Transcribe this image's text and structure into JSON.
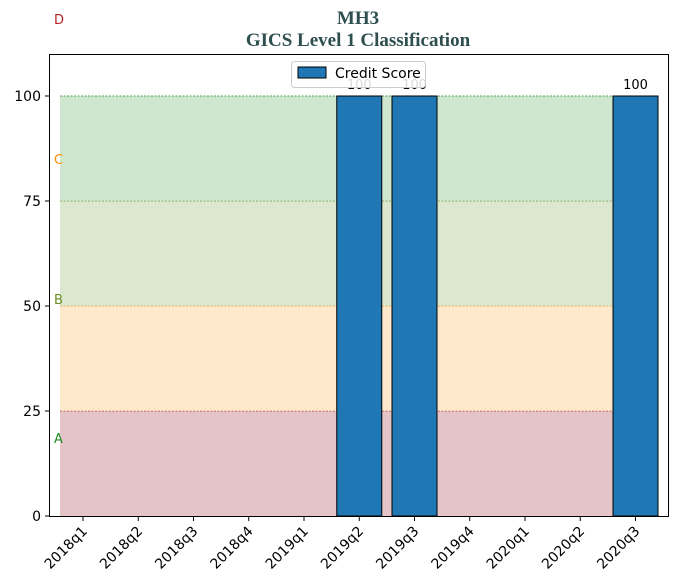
{
  "chart_data": {
    "type": "bar",
    "title": "MH3",
    "subtitle": "GICS Level 1 Classification",
    "xlabel": "",
    "ylabel": "",
    "categories": [
      "2018q1",
      "2018q2",
      "2018q3",
      "2018q4",
      "2019q1",
      "2019q2",
      "2019q3",
      "2019q4",
      "2020q1",
      "2020q2",
      "2020q3"
    ],
    "series": [
      {
        "name": "Credit Score",
        "values": [
          null,
          null,
          null,
          null,
          null,
          100,
          100,
          null,
          null,
          null,
          100
        ],
        "color": "#1f77b4"
      }
    ],
    "data_labels": [
      "",
      "",
      "",
      "",
      "",
      "100",
      "100",
      "",
      "",
      "",
      "100"
    ],
    "ylim": [
      0,
      110
    ],
    "yticks": [
      0,
      25,
      50,
      75,
      100
    ],
    "grid": false,
    "legend": "top-center",
    "bands": [
      {
        "letter": "A",
        "from": 0,
        "to": 25,
        "fill": "#c9898f",
        "line": "#b22222",
        "letter_color": "#228b22"
      },
      {
        "letter": "B",
        "from": 25,
        "to": 50,
        "fill": "#ffd39b",
        "line": "#ff8c00",
        "letter_color": "#6b8e23"
      },
      {
        "letter": "C",
        "from": 50,
        "to": 75,
        "fill": "#b8cfa0",
        "line": "#6b8e23",
        "letter_color": "#ff8c00"
      },
      {
        "letter": "D",
        "from": 75,
        "to": 100,
        "fill": "#9fd09f",
        "line": "#228b22",
        "letter_color": "#b22222"
      }
    ]
  }
}
